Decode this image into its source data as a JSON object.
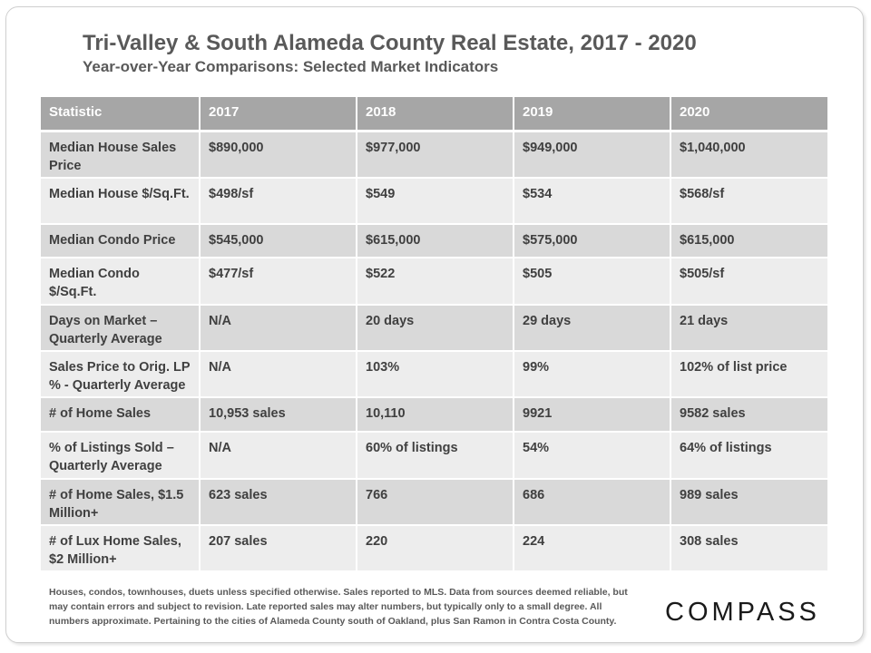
{
  "title": "Tri-Valley & South Alameda County Real Estate, 2017 - 2020",
  "subtitle": "Year-over-Year  Comparisons:  Selected Market Indicators",
  "table": {
    "headers": [
      "Statistic",
      "2017",
      "2018",
      "2019",
      "2020"
    ],
    "rows": [
      [
        "Median House Sales Price",
        "$890,000",
        "$977,000",
        "$949,000",
        "$1,040,000"
      ],
      [
        "Median House $/Sq.Ft.",
        "$498/sf",
        "$549",
        "$534",
        "$568/sf"
      ],
      [
        "Median Condo Price",
        "$545,000",
        "$615,000",
        "$575,000",
        "$615,000"
      ],
      [
        "Median Condo $/Sq.Ft.",
        "$477/sf",
        "$522",
        "$505",
        "$505/sf"
      ],
      [
        "Days on Market – Quarterly Average",
        "N/A",
        "20 days",
        "29 days",
        "21 days"
      ],
      [
        "Sales Price to Orig. LP % - Quarterly Average",
        "N/A",
        "103%",
        "99%",
        "102% of list price"
      ],
      [
        "# of Home Sales",
        "10,953 sales",
        "10,110",
        "9921",
        "9582 sales"
      ],
      [
        "% of Listings Sold – Quarterly Average",
        "N/A",
        "60% of listings",
        "54%",
        "64% of listings"
      ],
      [
        "# of Home Sales, $1.5 Million+",
        "623 sales",
        "766",
        "686",
        "989 sales"
      ],
      [
        "# of Lux Home Sales, $2 Million+",
        "207 sales",
        "220",
        "224",
        "308 sales"
      ]
    ]
  },
  "footnote": "Houses, condos, townhouses, duets unless specified otherwise. Sales reported to MLS. Data from sources deemed reliable, but may contain errors and subject to revision. Late reported sales may alter numbers, but typically only to a small degree. All numbers approximate. Pertaining to the cities of Alameda County south of Oakland, plus San Ramon in Contra Costa County.",
  "logo": "COMPASS",
  "colors": {
    "header_bg": "#a6a6a6",
    "row_dark": "#d9d9d9",
    "row_light": "#ededed",
    "title_text": "#595959"
  }
}
